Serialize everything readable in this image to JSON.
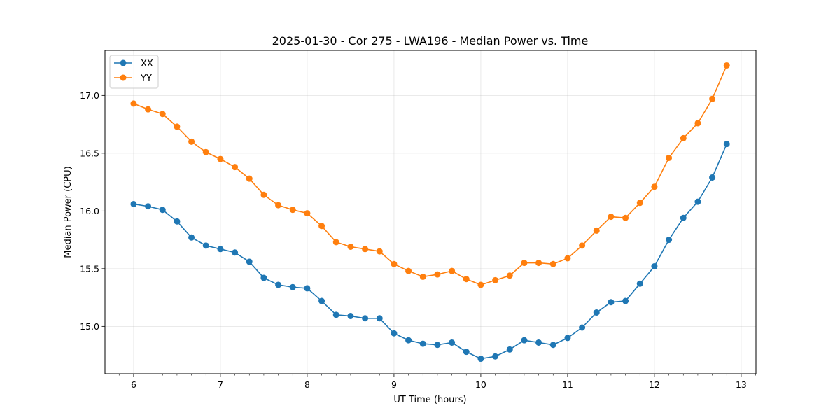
{
  "chart_data": {
    "type": "line",
    "title": "2025-01-30 - Cor 275 - LWA196 - Median Power vs. Time",
    "xlabel": "UT Time (hours)",
    "ylabel": "Median Power (CPU)",
    "xlim": [
      5.67,
      13.17
    ],
    "ylim": [
      14.59,
      17.39
    ],
    "xticks": [
      6,
      7,
      8,
      9,
      10,
      11,
      12,
      13
    ],
    "yticks": [
      15.0,
      15.5,
      16.0,
      16.5,
      17.0
    ],
    "xtick_labels": [
      "6",
      "7",
      "8",
      "9",
      "10",
      "11",
      "12",
      "13"
    ],
    "ytick_labels": [
      "15.0",
      "15.5",
      "16.0",
      "16.5",
      "17.0"
    ],
    "grid": true,
    "legend_position": "top-left",
    "x": [
      6.0,
      6.1667,
      6.3333,
      6.5,
      6.6667,
      6.8333,
      7.0,
      7.1667,
      7.3333,
      7.5,
      7.6667,
      7.8333,
      8.0,
      8.1667,
      8.3333,
      8.5,
      8.6667,
      8.8333,
      9.0,
      9.1667,
      9.3333,
      9.5,
      9.6667,
      9.8333,
      10.0,
      10.1667,
      10.3333,
      10.5,
      10.6667,
      10.8333,
      11.0,
      11.1667,
      11.3333,
      11.5,
      11.6667,
      11.8333,
      12.0,
      12.1667,
      12.3333,
      12.5,
      12.6667,
      12.8333
    ],
    "series": [
      {
        "name": "XX",
        "color": "#1f77b4",
        "values": [
          16.06,
          16.04,
          16.01,
          15.91,
          15.77,
          15.7,
          15.67,
          15.64,
          15.56,
          15.42,
          15.36,
          15.34,
          15.33,
          15.22,
          15.1,
          15.09,
          15.07,
          15.07,
          14.94,
          14.88,
          14.85,
          14.84,
          14.86,
          14.78,
          14.72,
          14.74,
          14.8,
          14.88,
          14.86,
          14.84,
          14.9,
          14.99,
          15.12,
          15.21,
          15.22,
          15.37,
          15.52,
          15.75,
          15.94,
          16.08,
          16.29,
          16.58
        ]
      },
      {
        "name": "YY",
        "color": "#ff7f0e",
        "values": [
          16.93,
          16.88,
          16.84,
          16.73,
          16.6,
          16.51,
          16.45,
          16.38,
          16.28,
          16.14,
          16.05,
          16.01,
          15.98,
          15.87,
          15.73,
          15.69,
          15.67,
          15.65,
          15.54,
          15.48,
          15.43,
          15.45,
          15.48,
          15.41,
          15.36,
          15.4,
          15.44,
          15.55,
          15.55,
          15.54,
          15.59,
          15.7,
          15.83,
          15.95,
          15.94,
          16.07,
          16.21,
          16.46,
          16.63,
          16.76,
          16.97,
          17.26
        ]
      }
    ]
  }
}
